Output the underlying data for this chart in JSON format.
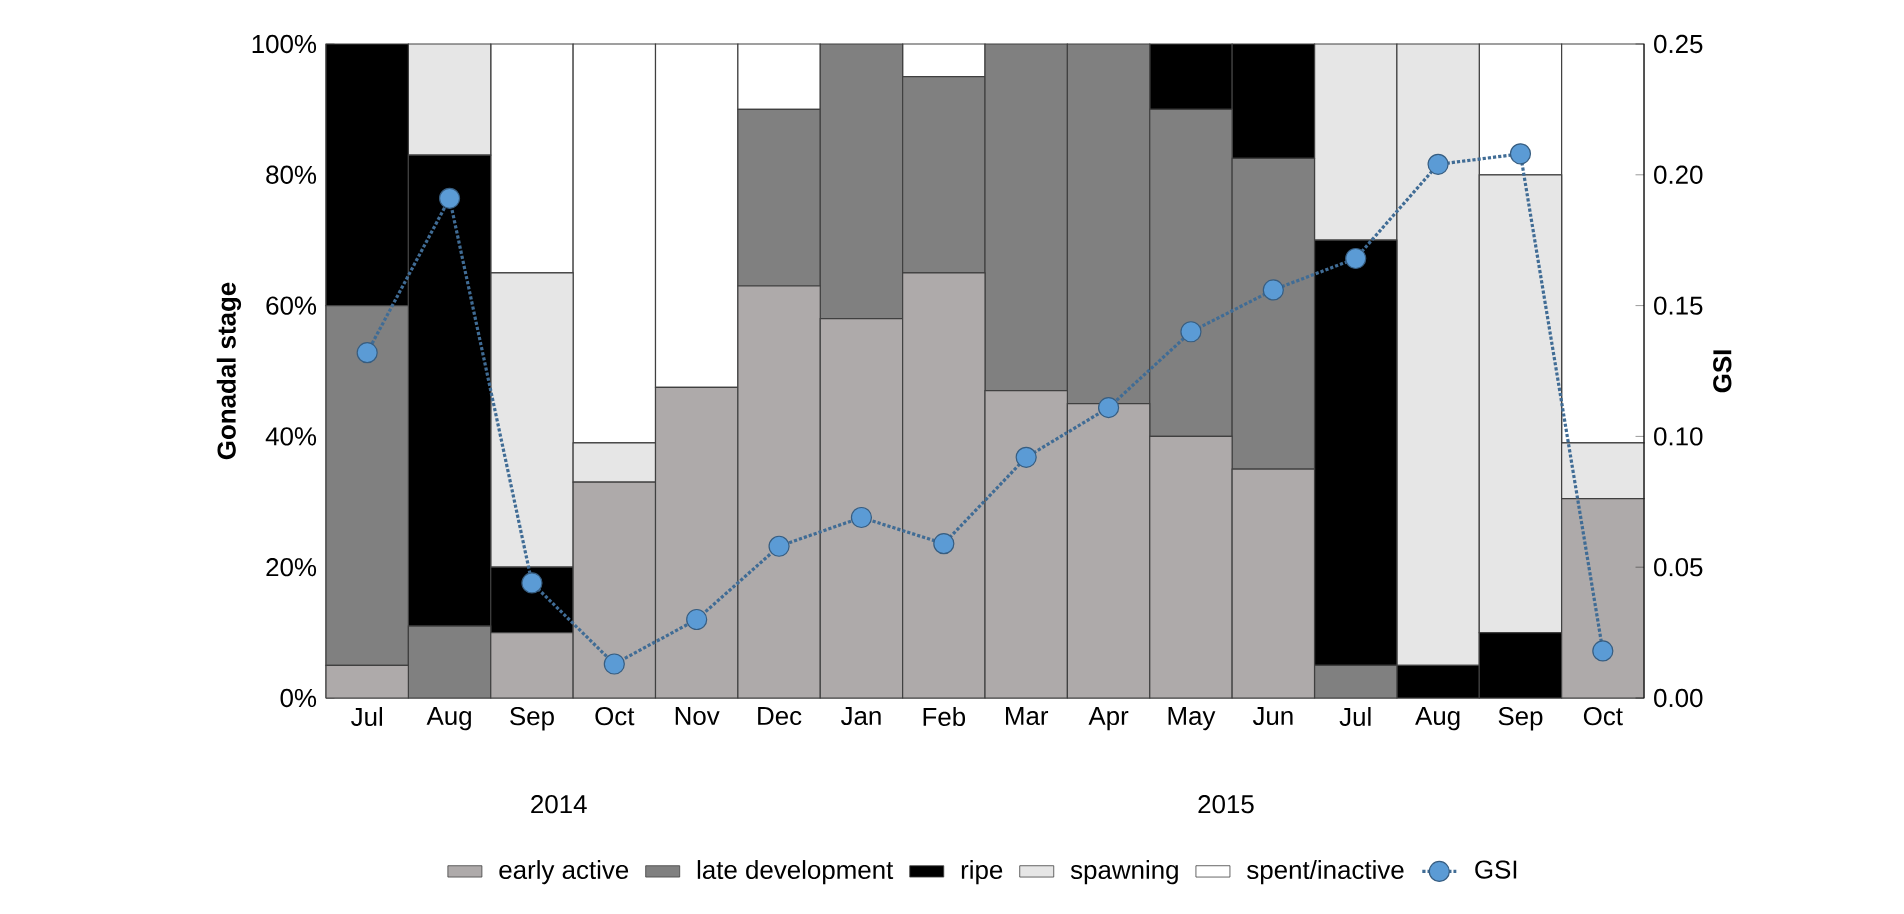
{
  "chart_data": {
    "type": "bar",
    "stacked": true,
    "categories": [
      "Jul",
      "Aug",
      "Sep",
      "Oct",
      "Nov",
      "Dec",
      "Jan",
      "Feb",
      "Mar",
      "Apr",
      "May",
      "Jun",
      "Jul",
      "Aug",
      "Sep",
      "Oct"
    ],
    "ylabel": "Gonadal stage",
    "y2label": "GSI",
    "annotations": [
      "2014",
      "2015"
    ],
    "series": [
      {
        "name": "early active",
        "color": "#aeaaaa",
        "values": [
          5,
          0,
          10,
          33,
          47.5,
          63,
          58,
          65,
          47,
          45,
          40,
          35,
          0,
          0,
          0,
          30.5
        ]
      },
      {
        "name": "late development",
        "color": "#808080",
        "values": [
          55,
          11,
          0,
          0,
          0,
          27,
          42,
          30,
          53,
          55,
          50,
          47.5,
          5,
          0,
          0,
          0
        ]
      },
      {
        "name": "ripe",
        "color": "#000000",
        "values": [
          40,
          72,
          10,
          0,
          0,
          0,
          0,
          0,
          0,
          0,
          10,
          17.5,
          65,
          5,
          10,
          0
        ]
      },
      {
        "name": "spawning",
        "color": "#e6e6e6",
        "values": [
          0,
          17,
          45,
          6,
          0,
          0,
          0,
          0,
          0,
          0,
          0,
          0,
          30,
          95,
          70,
          8.5
        ]
      },
      {
        "name": "spent/inactive",
        "color": "#ffffff",
        "values": [
          0,
          0,
          35,
          61,
          52.5,
          10,
          0,
          5,
          0,
          0,
          0,
          0,
          0,
          0,
          20,
          61
        ]
      },
      {
        "name": "GSI",
        "type": "line",
        "axis": "y2",
        "color": "#5b9bd5",
        "marker": "circle",
        "line_style": "dotted",
        "values": [
          0.132,
          0.191,
          0.044,
          0.013,
          0.03,
          0.058,
          0.069,
          0.059,
          0.092,
          0.111,
          0.14,
          0.156,
          0.168,
          0.204,
          0.208,
          0.018
        ]
      }
    ],
    "ylim": [
      0,
      100
    ],
    "yticks": [
      {
        "value": 0,
        "label": "0%"
      },
      {
        "value": 20,
        "label": "20%"
      },
      {
        "value": 40,
        "label": "40%"
      },
      {
        "value": 60,
        "label": "60%"
      },
      {
        "value": 80,
        "label": "80%"
      },
      {
        "value": 100,
        "label": "100%"
      }
    ],
    "y2lim": [
      0,
      0.25
    ],
    "y2ticks": [
      {
        "value": 0,
        "label": "0.00"
      },
      {
        "value": 0.05,
        "label": "0.05"
      },
      {
        "value": 0.1,
        "label": "0.10"
      },
      {
        "value": 0.15,
        "label": "0.15"
      },
      {
        "value": 0.2,
        "label": "0.20"
      },
      {
        "value": 0.25,
        "label": "0.25"
      }
    ],
    "legend": "bottom",
    "grid": false
  }
}
